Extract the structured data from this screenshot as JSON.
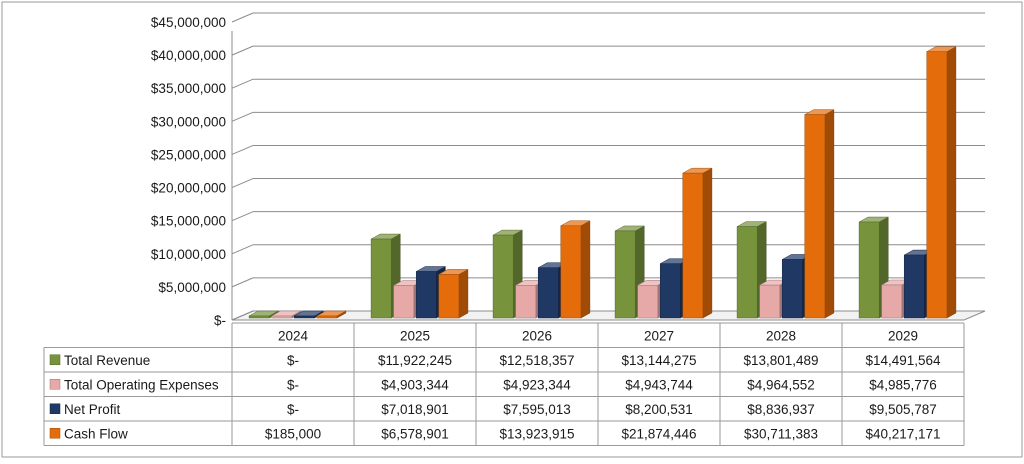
{
  "chart_data": {
    "type": "bar",
    "style": "3d-clustered-column-with-data-table",
    "categories": [
      "2024",
      "2025",
      "2026",
      "2027",
      "2028",
      "2029"
    ],
    "ylim": [
      0,
      45000000
    ],
    "yticks": [
      {
        "value": 0,
        "label": "$-"
      },
      {
        "value": 5000000,
        "label": "$5,000,000"
      },
      {
        "value": 10000000,
        "label": "$10,000,000"
      },
      {
        "value": 15000000,
        "label": "$15,000,000"
      },
      {
        "value": 20000000,
        "label": "$20,000,000"
      },
      {
        "value": 25000000,
        "label": "$25,000,000"
      },
      {
        "value": 30000000,
        "label": "$30,000,000"
      },
      {
        "value": 35000000,
        "label": "$35,000,000"
      },
      {
        "value": 40000000,
        "label": "$40,000,000"
      },
      {
        "value": 45000000,
        "label": "$45,000,000"
      }
    ],
    "grid": true,
    "legend": "data-table-left",
    "series": [
      {
        "name": "Total Revenue",
        "color": "#77933C",
        "values": [
          0,
          11922245,
          12518357,
          13144275,
          13801489,
          14491564
        ],
        "labels": [
          "$-",
          "$11,922,245",
          "$12,518,357",
          "$13,144,275",
          "$13,801,489",
          "$14,491,564"
        ]
      },
      {
        "name": "Total Operating Expenses",
        "color": "#E6A9A8",
        "values": [
          0,
          4903344,
          4923344,
          4943744,
          4964552,
          4985776
        ],
        "labels": [
          "$-",
          "$4,903,344",
          "$4,923,344",
          "$4,943,744",
          "$4,964,552",
          "$4,985,776"
        ]
      },
      {
        "name": "Net Profit",
        "color": "#1F3864",
        "values": [
          0,
          7018901,
          7595013,
          8200531,
          8836937,
          9505787
        ],
        "labels": [
          "$-",
          "$7,018,901",
          "$7,595,013",
          "$8,200,531",
          "$8,836,937",
          "$9,505,787"
        ]
      },
      {
        "name": "Cash Flow",
        "color": "#E46C0A",
        "values": [
          185000,
          6578901,
          13923915,
          21874446,
          30711383,
          40217171
        ],
        "labels": [
          "$185,000",
          "$6,578,901",
          "$13,923,915",
          "$21,874,446",
          "$30,711,383",
          "$40,217,171"
        ]
      }
    ]
  }
}
